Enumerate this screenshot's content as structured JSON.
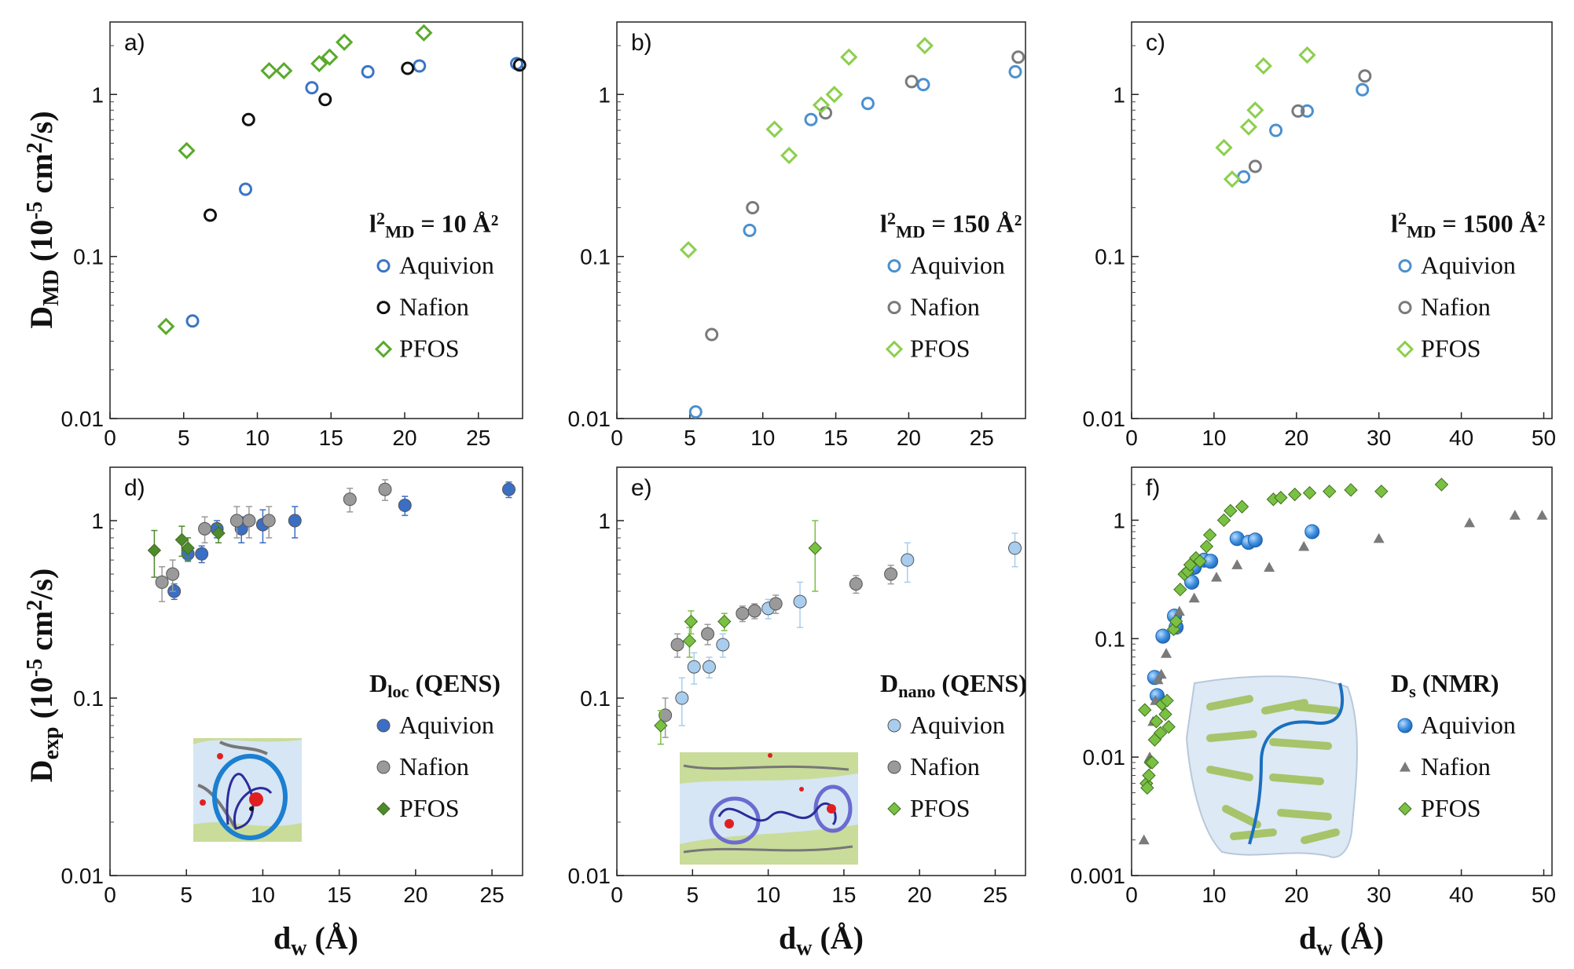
{
  "chart_data": [
    {
      "panel": "a)",
      "type": "scatter",
      "annotation": {
        "parts": [
          {
            "t": "l"
          },
          {
            "t": "2",
            "shift": "super"
          },
          {
            "t": "MD",
            "shift": "sub"
          },
          {
            "t": " = 10 Å²"
          }
        ]
      },
      "xlim": [
        0,
        28
      ],
      "xticks": [
        0,
        5,
        10,
        15,
        20,
        25
      ],
      "ylim": [
        0.01,
        2.8
      ],
      "yticks": [
        0.01,
        0.1,
        1
      ],
      "ytick_labels": [
        "0.01",
        "0.1",
        "1"
      ],
      "series": [
        {
          "name": "Aquivion",
          "marker": "circle-open",
          "color": "#3a75c4",
          "points": [
            [
              5.6,
              0.04
            ],
            [
              9.2,
              0.26
            ],
            [
              13.7,
              1.1
            ],
            [
              17.5,
              1.38
            ],
            [
              21,
              1.5
            ],
            [
              27.6,
              1.55
            ]
          ]
        },
        {
          "name": "Nafion",
          "marker": "circle-open",
          "color": "#111111",
          "points": [
            [
              6.8,
              0.18
            ],
            [
              9.4,
              0.7
            ],
            [
              14.6,
              0.93
            ],
            [
              20.2,
              1.45
            ],
            [
              27.8,
              1.52
            ]
          ]
        },
        {
          "name": "PFOS",
          "marker": "diamond-open",
          "color": "#5aaa2c",
          "points": [
            [
              3.8,
              0.037
            ],
            [
              5.2,
              0.45
            ],
            [
              10.8,
              1.4
            ],
            [
              11.8,
              1.4
            ],
            [
              14.2,
              1.55
            ],
            [
              14.9,
              1.7
            ],
            [
              15.9,
              2.1
            ],
            [
              21.3,
              2.4
            ]
          ]
        }
      ]
    },
    {
      "panel": "b)",
      "type": "scatter",
      "annotation": {
        "parts": [
          {
            "t": "l"
          },
          {
            "t": "2",
            "shift": "super"
          },
          {
            "t": "MD",
            "shift": "sub"
          },
          {
            "t": " = 150 Å²"
          }
        ]
      },
      "xlim": [
        0,
        28
      ],
      "xticks": [
        0,
        5,
        10,
        15,
        20,
        25
      ],
      "ylim": [
        0.01,
        2.8
      ],
      "yticks": [
        0.01,
        0.1,
        1
      ],
      "ytick_labels": [
        "0.01",
        "0.1",
        "1"
      ],
      "series": [
        {
          "name": "Aquivion",
          "marker": "circle-open",
          "color": "#4a90d0",
          "points": [
            [
              5.4,
              0.011
            ],
            [
              9.1,
              0.145
            ],
            [
              13.3,
              0.7
            ],
            [
              17.2,
              0.88
            ],
            [
              21,
              1.15
            ],
            [
              27.3,
              1.38
            ]
          ]
        },
        {
          "name": "Nafion",
          "marker": "circle-open",
          "color": "#7a7a7a",
          "points": [
            [
              6.5,
              0.033
            ],
            [
              9.3,
              0.2
            ],
            [
              14.3,
              0.77
            ],
            [
              20.2,
              1.2
            ],
            [
              27.5,
              1.7
            ]
          ]
        },
        {
          "name": "PFOS",
          "marker": "diamond-open",
          "color": "#8ccf4d",
          "points": [
            [
              4.9,
              0.11
            ],
            [
              10.8,
              0.61
            ],
            [
              11.8,
              0.42
            ],
            [
              14,
              0.86
            ],
            [
              14.9,
              1.0
            ],
            [
              15.9,
              1.7
            ],
            [
              21.1,
              2.0
            ]
          ]
        }
      ]
    },
    {
      "panel": "c)",
      "type": "scatter",
      "annotation": {
        "parts": [
          {
            "t": "l"
          },
          {
            "t": "2",
            "shift": "super"
          },
          {
            "t": "MD",
            "shift": "sub"
          },
          {
            "t": " = 1500 Å²"
          }
        ]
      },
      "xlim": [
        0,
        51
      ],
      "xticks": [
        0,
        10,
        20,
        30,
        40,
        50
      ],
      "ylim": [
        0.01,
        2.8
      ],
      "yticks": [
        0.01,
        0.1,
        1
      ],
      "ytick_labels": [
        "0.01",
        "0.1",
        "1"
      ],
      "series": [
        {
          "name": "Aquivion",
          "marker": "circle-open",
          "color": "#4a90d0",
          "points": [
            [
              13.6,
              0.31
            ],
            [
              17.5,
              0.6
            ],
            [
              21.3,
              0.79
            ],
            [
              28,
              1.07
            ]
          ]
        },
        {
          "name": "Nafion",
          "marker": "circle-open",
          "color": "#7a7a7a",
          "points": [
            [
              15,
              0.36
            ],
            [
              20.2,
              0.79
            ],
            [
              28.3,
              1.3
            ]
          ]
        },
        {
          "name": "PFOS",
          "marker": "diamond-open",
          "color": "#8ccf4d",
          "points": [
            [
              11.2,
              0.47
            ],
            [
              12.2,
              0.3
            ],
            [
              14.2,
              0.63
            ],
            [
              15,
              0.8
            ],
            [
              16,
              1.5
            ],
            [
              21.3,
              1.75
            ]
          ]
        }
      ]
    },
    {
      "panel": "d)",
      "type": "scatter",
      "annotation": {
        "parts": [
          {
            "t": "D"
          },
          {
            "t": "loc",
            "shift": "sub"
          },
          {
            "t": " (QENS)"
          }
        ]
      },
      "xlim": [
        0,
        27
      ],
      "xticks": [
        0,
        5,
        10,
        15,
        20,
        25
      ],
      "ylim": [
        0.01,
        2.0
      ],
      "yticks": [
        0.01,
        0.1,
        1
      ],
      "ytick_labels": [
        "0.01",
        "0.1",
        "1"
      ],
      "series": [
        {
          "name": "Aquivion",
          "marker": "circle-filled",
          "color": "#3b6fc4",
          "points": [
            [
              4.2,
              0.4,
              0.04
            ],
            [
              5.1,
              0.65,
              0.06
            ],
            [
              6,
              0.65,
              0.07
            ],
            [
              7,
              0.9,
              0.1
            ],
            [
              8.6,
              0.9,
              0.15
            ],
            [
              10,
              0.95,
              0.2
            ],
            [
              12.1,
              1.0,
              0.2
            ],
            [
              19.3,
              1.22,
              0.15
            ],
            [
              26.1,
              1.5,
              0.15
            ]
          ]
        },
        {
          "name": "Nafion",
          "marker": "circle-filled",
          "color": "#9a9a9a",
          "points": [
            [
              3.4,
              0.45,
              0.1
            ],
            [
              4.1,
              0.5,
              0.1
            ],
            [
              6.2,
              0.9,
              0.15
            ],
            [
              8.3,
              1.0,
              0.2
            ],
            [
              9.1,
              1.0,
              0.2
            ],
            [
              10.4,
              1.0,
              0.2
            ],
            [
              15.7,
              1.32,
              0.2
            ],
            [
              18,
              1.5,
              0.2
            ]
          ]
        },
        {
          "name": "PFOS",
          "marker": "diamond-filled",
          "color": "#4f8a2c",
          "points": [
            [
              2.9,
              0.68,
              0.2
            ],
            [
              4.7,
              0.78,
              0.15
            ],
            [
              5.1,
              0.7,
              0.1
            ],
            [
              7.1,
              0.85,
              0.1
            ]
          ]
        }
      ]
    },
    {
      "panel": "e)",
      "type": "scatter",
      "annotation": {
        "parts": [
          {
            "t": "D"
          },
          {
            "t": "nano",
            "shift": "sub"
          },
          {
            "t": " (QENS)"
          }
        ]
      },
      "xlim": [
        0,
        27
      ],
      "xticks": [
        0,
        5,
        10,
        15,
        20,
        25
      ],
      "ylim": [
        0.01,
        2.0
      ],
      "yticks": [
        0.01,
        0.1,
        1
      ],
      "ytick_labels": [
        "0.01",
        "0.1",
        "1"
      ],
      "series": [
        {
          "name": "Aquivion",
          "marker": "circle-filled",
          "color": "#a8cdee",
          "points": [
            [
              4.3,
              0.1,
              0.03
            ],
            [
              5.1,
              0.15,
              0.03
            ],
            [
              6.1,
              0.15,
              0.02
            ],
            [
              7,
              0.2,
              0.03
            ],
            [
              10,
              0.32,
              0.04
            ],
            [
              12.1,
              0.35,
              0.1
            ],
            [
              19.2,
              0.6,
              0.15
            ],
            [
              26.3,
              0.7,
              0.15
            ]
          ]
        },
        {
          "name": "Nafion",
          "marker": "circle-filled",
          "color": "#9a9a9a",
          "points": [
            [
              3.2,
              0.08,
              0.02
            ],
            [
              4,
              0.2,
              0.03
            ],
            [
              6,
              0.23,
              0.03
            ],
            [
              8.3,
              0.3,
              0.03
            ],
            [
              9.1,
              0.31,
              0.03
            ],
            [
              10.5,
              0.34,
              0.04
            ],
            [
              15.8,
              0.44,
              0.05
            ],
            [
              18.1,
              0.5,
              0.06
            ]
          ]
        },
        {
          "name": "PFOS",
          "marker": "diamond-filled",
          "color": "#7ac143",
          "points": [
            [
              2.9,
              0.07,
              0.015
            ],
            [
              4.8,
              0.21,
              0.04
            ],
            [
              4.9,
              0.27,
              0.04
            ],
            [
              7.1,
              0.27,
              0.03
            ],
            [
              13.1,
              0.7,
              0.3
            ]
          ]
        }
      ]
    },
    {
      "panel": "f)",
      "type": "scatter",
      "annotation": {
        "parts": [
          {
            "t": "D"
          },
          {
            "t": "s",
            "shift": "sub"
          },
          {
            "t": " (NMR)"
          }
        ]
      },
      "xlim": [
        0,
        51
      ],
      "xticks": [
        0,
        10,
        20,
        30,
        40,
        50
      ],
      "ylim": [
        0.001,
        2.8
      ],
      "yticks": [
        0.001,
        0.01,
        0.1,
        1
      ],
      "ytick_labels": [
        "0.001",
        "0.01",
        "0.1",
        "1"
      ],
      "series": [
        {
          "name": "Aquivion",
          "marker": "circle-gradient",
          "color": "#2e7fd0",
          "points": [
            [
              2.8,
              0.047
            ],
            [
              3.1,
              0.033
            ],
            [
              3.8,
              0.105
            ],
            [
              5.2,
              0.155
            ],
            [
              5.4,
              0.125
            ],
            [
              7.3,
              0.3
            ],
            [
              7.6,
              0.4
            ],
            [
              8.8,
              0.46
            ],
            [
              9.6,
              0.45
            ],
            [
              12.8,
              0.7
            ],
            [
              14.2,
              0.65
            ],
            [
              15,
              0.68
            ],
            [
              21.9,
              0.8
            ]
          ]
        },
        {
          "name": "Nafion",
          "marker": "triangle-filled",
          "color": "#7a7a7a",
          "points": [
            [
              1.5,
              0.002
            ],
            [
              2.2,
              0.01
            ],
            [
              2.6,
              0.02
            ],
            [
              2.9,
              0.03
            ],
            [
              3.2,
              0.045
            ],
            [
              3.6,
              0.05
            ],
            [
              4.2,
              0.075
            ],
            [
              5.3,
              0.12
            ],
            [
              5.8,
              0.17
            ],
            [
              7.6,
              0.22
            ],
            [
              10.3,
              0.33
            ],
            [
              12.8,
              0.42
            ],
            [
              16.7,
              0.4
            ],
            [
              20.9,
              0.6
            ],
            [
              30,
              0.7
            ],
            [
              41,
              0.95
            ],
            [
              46.5,
              1.1
            ],
            [
              49.8,
              1.1
            ]
          ]
        },
        {
          "name": "PFOS",
          "marker": "diamond-filled",
          "color": "#7ac143",
          "points": [
            [
              1.6,
              0.025
            ],
            [
              1.8,
              0.006
            ],
            [
              1.9,
              0.0055
            ],
            [
              2.1,
              0.007
            ],
            [
              2.3,
              0.009
            ],
            [
              2.5,
              0.009
            ],
            [
              2.8,
              0.014
            ],
            [
              3,
              0.02
            ],
            [
              3.5,
              0.016
            ],
            [
              3.7,
              0.028
            ],
            [
              4.1,
              0.023
            ],
            [
              4.3,
              0.03
            ],
            [
              4.5,
              0.018
            ],
            [
              5.1,
              0.12
            ],
            [
              5.4,
              0.14
            ],
            [
              5.9,
              0.26
            ],
            [
              6.4,
              0.35
            ],
            [
              6.8,
              0.37
            ],
            [
              7.1,
              0.42
            ],
            [
              7.8,
              0.48
            ],
            [
              8.3,
              0.45
            ],
            [
              9.1,
              0.6
            ],
            [
              9.5,
              0.75
            ],
            [
              11.2,
              1.0
            ],
            [
              12,
              1.2
            ],
            [
              13.4,
              1.3
            ],
            [
              17.2,
              1.5
            ],
            [
              18.1,
              1.55
            ],
            [
              19.8,
              1.65
            ],
            [
              21.6,
              1.7
            ],
            [
              24,
              1.75
            ],
            [
              26.6,
              1.8
            ],
            [
              30.3,
              1.75
            ],
            [
              37.6,
              2.0
            ]
          ]
        }
      ]
    }
  ],
  "axes": {
    "ylabel_top": {
      "parts": [
        {
          "t": "D"
        },
        {
          "t": "MD",
          "shift": "sub"
        },
        {
          "t": " (10"
        },
        {
          "t": "-5",
          "shift": "super"
        },
        {
          "t": " cm"
        },
        {
          "t": "2",
          "shift": "super"
        },
        {
          "t": "/s)"
        }
      ]
    },
    "ylabel_bottom": {
      "parts": [
        {
          "t": "D"
        },
        {
          "t": "exp",
          "shift": "sub"
        },
        {
          "t": " (10"
        },
        {
          "t": "-5",
          "shift": "super"
        },
        {
          "t": " cm"
        },
        {
          "t": "2",
          "shift": "super"
        },
        {
          "t": "/s)"
        }
      ]
    },
    "xlabel": {
      "parts": [
        {
          "t": "d"
        },
        {
          "t": "w",
          "shift": "sub"
        },
        {
          "t": " (Å)"
        }
      ]
    }
  }
}
